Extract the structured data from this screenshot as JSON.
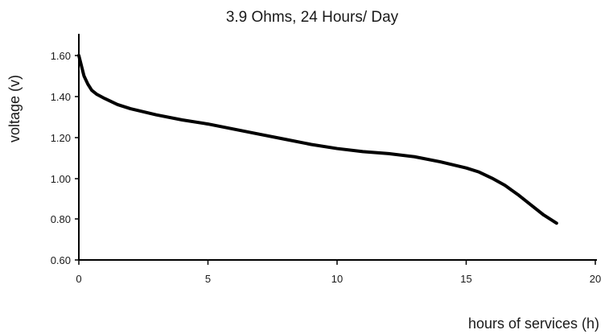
{
  "chart_data": {
    "type": "line",
    "title": "3.9 Ohms, 24 Hours/ Day",
    "xlabel": "hours of services (h)",
    "ylabel": "voltage (v)",
    "xlim": [
      0,
      20
    ],
    "ylim": [
      0.6,
      1.7
    ],
    "x_ticks": [
      0,
      5,
      10,
      15,
      20
    ],
    "x_tick_labels": [
      "0",
      "5",
      "10",
      "15",
      "20"
    ],
    "y_ticks": [
      0.6,
      0.8,
      1.0,
      1.2,
      1.4,
      1.6
    ],
    "y_tick_labels": [
      "0.60",
      "0.80",
      "1.00",
      "1.20",
      "1.40",
      "1.60"
    ],
    "grid": false,
    "series": [
      {
        "color": "#000000",
        "x": [
          0,
          0.1,
          0.2,
          0.35,
          0.5,
          0.7,
          1,
          1.5,
          2,
          3,
          4,
          5,
          6,
          7,
          8,
          9,
          10,
          11,
          12,
          13,
          14,
          15,
          15.5,
          16,
          16.5,
          17,
          17.5,
          18,
          18.5
        ],
        "y": [
          1.6,
          1.55,
          1.5,
          1.46,
          1.43,
          1.41,
          1.39,
          1.36,
          1.34,
          1.31,
          1.285,
          1.265,
          1.24,
          1.215,
          1.19,
          1.165,
          1.145,
          1.13,
          1.12,
          1.105,
          1.08,
          1.05,
          1.03,
          1.0,
          0.965,
          0.92,
          0.87,
          0.82,
          0.78
        ]
      }
    ]
  }
}
